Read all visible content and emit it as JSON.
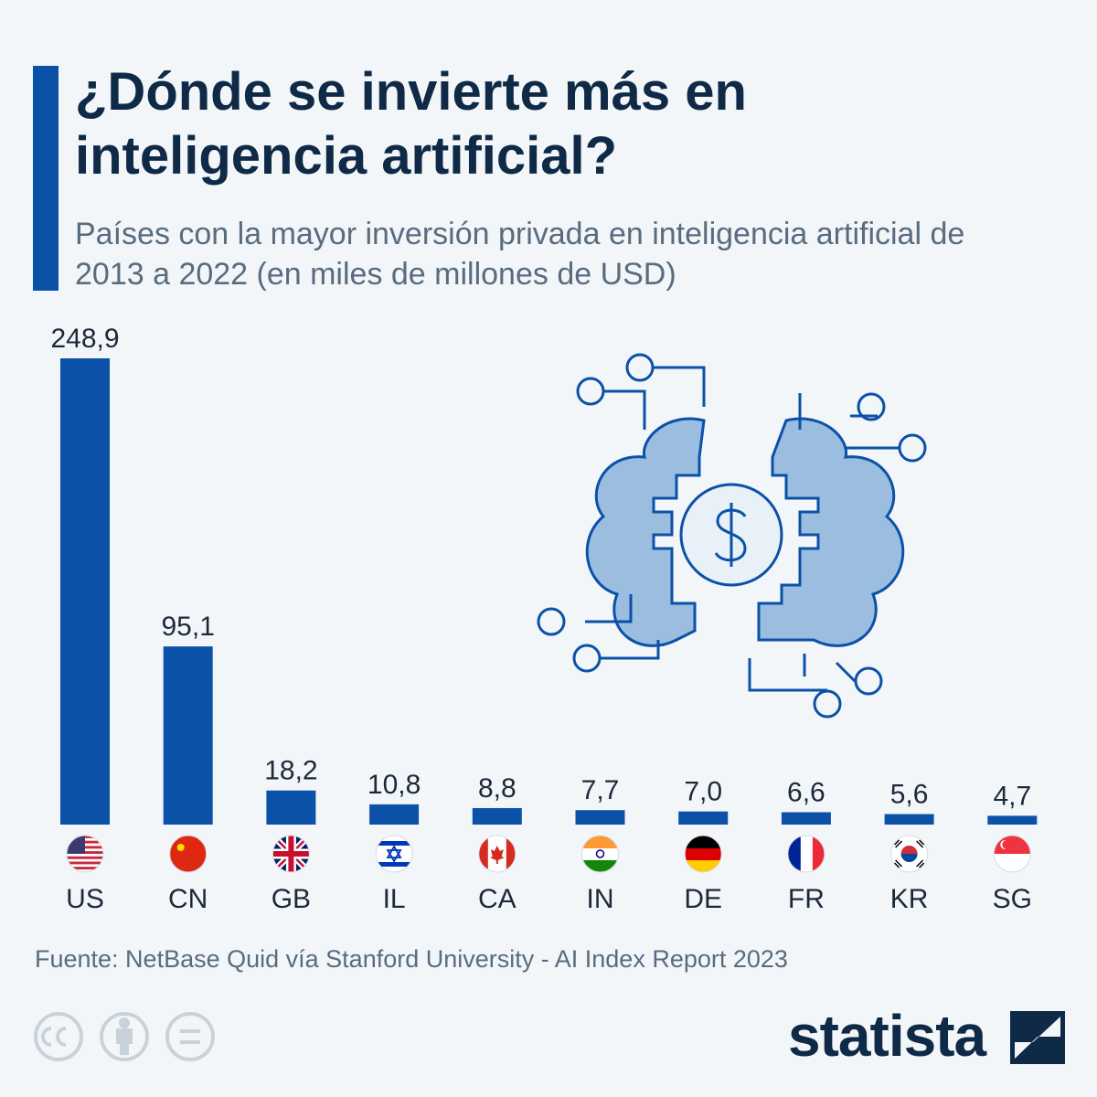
{
  "chart_data": {
    "type": "bar",
    "title": "¿Dónde se invierte más en inteligencia artificial?",
    "subtitle": "Países con la mayor inversión privada en inteligencia artificial de 2013 a 2022 (en miles de millones de USD)",
    "categories": [
      "US",
      "CN",
      "GB",
      "IL",
      "CA",
      "IN",
      "DE",
      "FR",
      "KR",
      "SG"
    ],
    "values": [
      248.9,
      95.1,
      18.2,
      10.8,
      8.8,
      7.7,
      7.0,
      6.6,
      5.6,
      4.7
    ],
    "value_labels": [
      "248,9",
      "95,1",
      "18,2",
      "10,8",
      "8,8",
      "7,7",
      "7,0",
      "6,6",
      "5,6",
      "4,7"
    ],
    "color": "#0b51a8",
    "source": "Fuente: NetBase Quid vía Stanford University - AI Index Report 2023",
    "logo": "statista"
  }
}
